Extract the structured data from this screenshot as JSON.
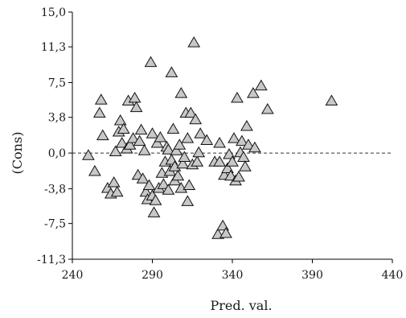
{
  "chart_data": {
    "type": "scatter",
    "xlabel": "Pred. val.",
    "ylabel": "(Cons)",
    "xlim": [
      240,
      440
    ],
    "ylim": [
      -11.3,
      15.0
    ],
    "x_ticks": [
      240,
      290,
      340,
      390,
      440
    ],
    "x_tick_labels": [
      "240",
      "290",
      "340",
      "390",
      "440"
    ],
    "y_ticks": [
      -11.3,
      -7.5,
      -3.8,
      0.0,
      3.8,
      7.5,
      11.3,
      15.0
    ],
    "y_tick_labels": [
      "-11,3",
      "-7,5",
      "-3,8",
      "0,0",
      "3,8",
      "7,5",
      "11,3",
      "15,0"
    ],
    "reference_line": {
      "y": 0,
      "style": "dashed"
    },
    "grid": false,
    "marker": {
      "shape": "triangle",
      "fill": "#c8c8c8",
      "stroke": "#111111"
    },
    "series": [
      {
        "points": [
          [
            250,
            -0.3
          ],
          [
            254,
            -2.0
          ],
          [
            257,
            4.2
          ],
          [
            258,
            5.6
          ],
          [
            259,
            1.8
          ],
          [
            262,
            -3.8
          ],
          [
            264,
            -4.4
          ],
          [
            266,
            -3.2
          ],
          [
            267,
            0.1
          ],
          [
            268,
            -4.2
          ],
          [
            269,
            2.2
          ],
          [
            270,
            3.4
          ],
          [
            271,
            1.0
          ],
          [
            272,
            2.5
          ],
          [
            274,
            0.4
          ],
          [
            275,
            5.5
          ],
          [
            276,
            0.8
          ],
          [
            278,
            1.5
          ],
          [
            279,
            5.8
          ],
          [
            280,
            4.8
          ],
          [
            281,
            -2.4
          ],
          [
            282,
            1.2
          ],
          [
            283,
            2.4
          ],
          [
            284,
            -2.8
          ],
          [
            285,
            0.2
          ],
          [
            286,
            -4.2
          ],
          [
            287,
            -5.0
          ],
          [
            288,
            -3.5
          ],
          [
            289,
            9.6
          ],
          [
            290,
            2.0
          ],
          [
            290,
            -4.6
          ],
          [
            291,
            -6.4
          ],
          [
            292,
            -5.1
          ],
          [
            293,
            1.0
          ],
          [
            294,
            -3.8
          ],
          [
            295,
            1.6
          ],
          [
            296,
            -2.2
          ],
          [
            297,
            -3.4
          ],
          [
            298,
            -1.0
          ],
          [
            299,
            0.6
          ],
          [
            300,
            -4.0
          ],
          [
            300,
            0.3
          ],
          [
            301,
            -2.0
          ],
          [
            302,
            -0.8
          ],
          [
            302,
            8.5
          ],
          [
            303,
            2.5
          ],
          [
            304,
            -3.0
          ],
          [
            304,
            -1.5
          ],
          [
            305,
            0.2
          ],
          [
            306,
            -2.5
          ],
          [
            307,
            0.8
          ],
          [
            308,
            6.3
          ],
          [
            308,
            -3.8
          ],
          [
            309,
            -1.2
          ],
          [
            310,
            -0.5
          ],
          [
            311,
            4.2
          ],
          [
            312,
            -5.2
          ],
          [
            312,
            1.5
          ],
          [
            313,
            -3.5
          ],
          [
            314,
            4.2
          ],
          [
            315,
            -1.3
          ],
          [
            316,
            11.7
          ],
          [
            317,
            3.5
          ],
          [
            318,
            -1.0
          ],
          [
            319,
            0.0
          ],
          [
            320,
            2.0
          ],
          [
            324,
            1.3
          ],
          [
            329,
            -1.0
          ],
          [
            331,
            -8.7
          ],
          [
            332,
            1.0
          ],
          [
            332,
            -1.0
          ],
          [
            334,
            -7.8
          ],
          [
            335,
            -2.4
          ],
          [
            336,
            -8.6
          ],
          [
            337,
            -1.7
          ],
          [
            338,
            -0.2
          ],
          [
            339,
            -2.5
          ],
          [
            340,
            -1.0
          ],
          [
            341,
            1.5
          ],
          [
            342,
            -3.0
          ],
          [
            343,
            5.8
          ],
          [
            344,
            -2.6
          ],
          [
            345,
            0.0
          ],
          [
            346,
            1.2
          ],
          [
            347,
            -0.5
          ],
          [
            348,
            -1.5
          ],
          [
            349,
            2.8
          ],
          [
            350,
            0.8
          ],
          [
            353,
            6.3
          ],
          [
            354,
            0.5
          ],
          [
            358,
            7.1
          ],
          [
            362,
            4.6
          ],
          [
            402,
            5.5
          ]
        ]
      }
    ]
  }
}
